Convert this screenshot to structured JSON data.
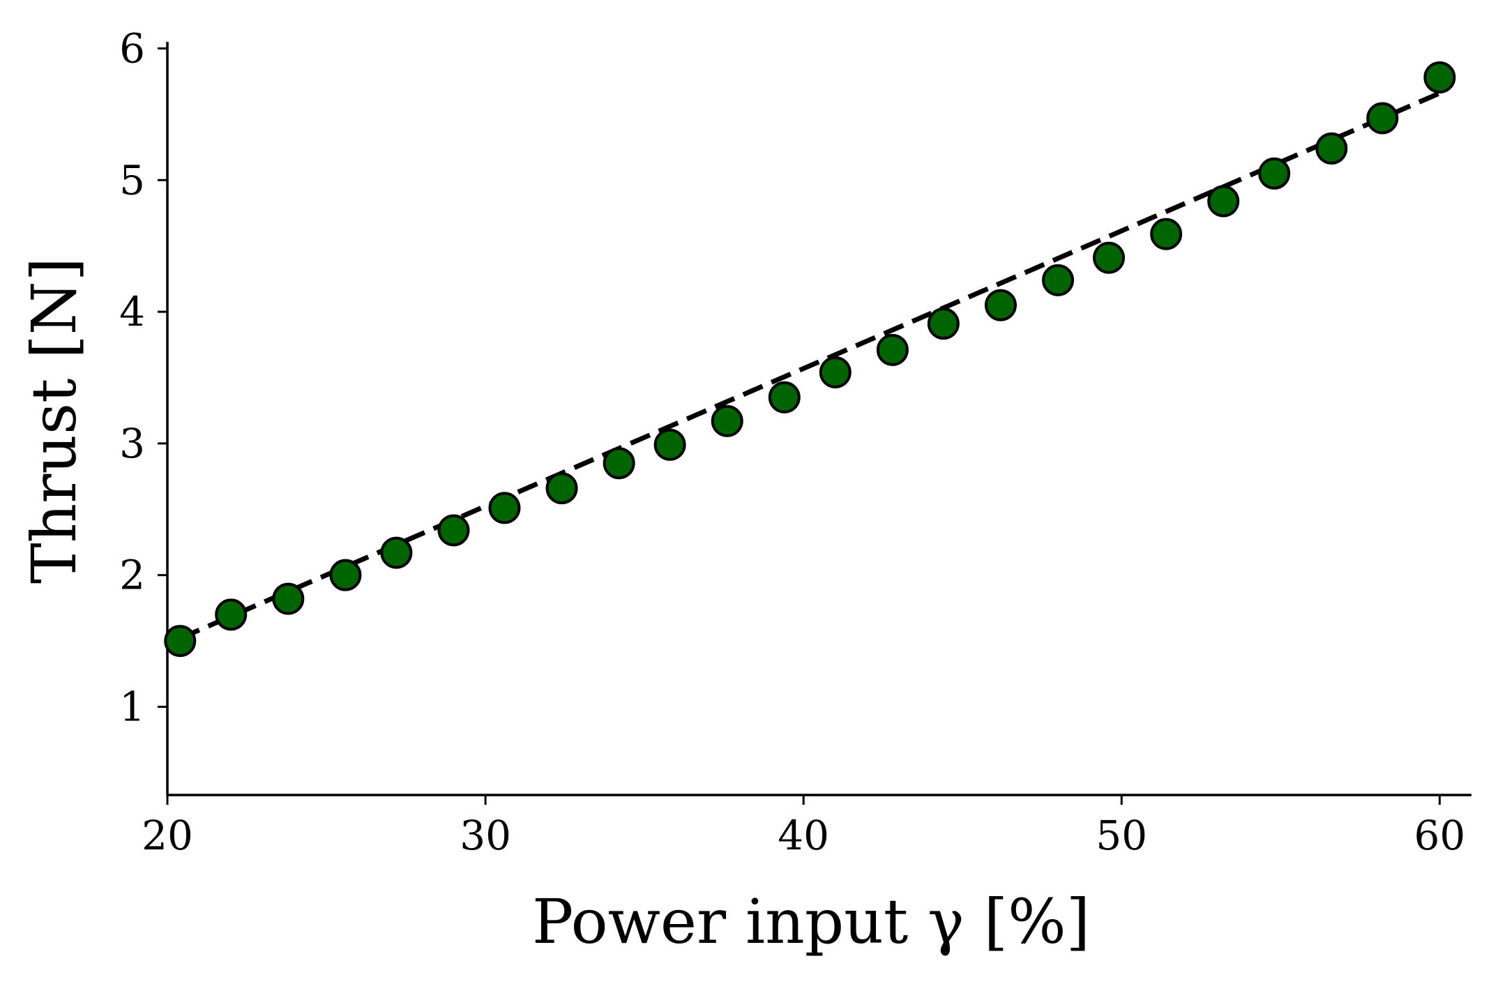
{
  "chart_data": {
    "type": "scatter",
    "title": "",
    "xlabel": "Power input γ [%]",
    "ylabel": "Thrust [N]",
    "xlim": [
      20,
      61
    ],
    "ylim": [
      0.33,
      6.05
    ],
    "xticks": [
      20,
      30,
      40,
      50,
      60
    ],
    "yticks": [
      1,
      2,
      3,
      4,
      5,
      6
    ],
    "xtick_labels": [
      "20",
      "30",
      "40",
      "50",
      "60"
    ],
    "ytick_labels": [
      "1",
      "2",
      "3",
      "4",
      "5",
      "6"
    ],
    "grid": false,
    "series": [
      {
        "marker": "circle",
        "marker_color": "#006400",
        "marker_edge_color": "#000000",
        "x": [
          20.4,
          22.0,
          23.8,
          25.6,
          27.2,
          29.0,
          30.6,
          32.4,
          34.2,
          35.8,
          37.6,
          39.4,
          41.0,
          42.8,
          44.4,
          46.2,
          48.0,
          49.6,
          51.4,
          53.2,
          54.8,
          56.6,
          58.2,
          60.0
        ],
        "y": [
          1.5,
          1.7,
          1.82,
          2.0,
          2.17,
          2.34,
          2.51,
          2.66,
          2.85,
          2.99,
          3.17,
          3.35,
          3.54,
          3.71,
          3.91,
          4.05,
          4.24,
          4.41,
          4.59,
          4.84,
          5.05,
          5.24,
          5.47,
          5.78
        ]
      },
      {
        "line_style": "dashed",
        "line_color": "#000000",
        "x": [
          20.4,
          60.0
        ],
        "y": [
          1.52,
          5.66
        ]
      }
    ]
  }
}
